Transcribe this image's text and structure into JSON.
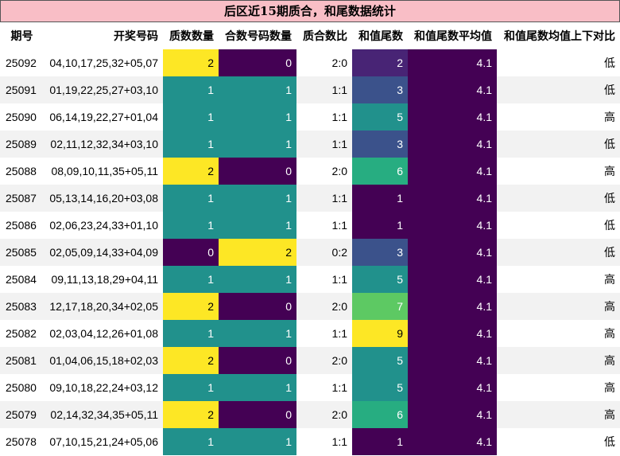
{
  "title": "后区近15期质合，和尾数据统计",
  "columns": [
    "期号",
    "开奖号码",
    "质数数量",
    "合数号码数量",
    "质合数比",
    "和值尾数",
    "和值尾数平均值",
    "和值尾数均值上下对比"
  ],
  "rows": [
    {
      "period": "25092",
      "numbers": "04,10,17,25,32+05,07",
      "prime": "2",
      "composite": "0",
      "ratio": "2:0",
      "tail": "2",
      "avg": "4.1",
      "cmp": "低"
    },
    {
      "period": "25091",
      "numbers": "01,19,22,25,27+03,10",
      "prime": "1",
      "composite": "1",
      "ratio": "1:1",
      "tail": "3",
      "avg": "4.1",
      "cmp": "低"
    },
    {
      "period": "25090",
      "numbers": "06,14,19,22,27+01,04",
      "prime": "1",
      "composite": "1",
      "ratio": "1:1",
      "tail": "5",
      "avg": "4.1",
      "cmp": "高"
    },
    {
      "period": "25089",
      "numbers": "02,11,12,32,34+03,10",
      "prime": "1",
      "composite": "1",
      "ratio": "1:1",
      "tail": "3",
      "avg": "4.1",
      "cmp": "低"
    },
    {
      "period": "25088",
      "numbers": "08,09,10,11,35+05,11",
      "prime": "2",
      "composite": "0",
      "ratio": "2:0",
      "tail": "6",
      "avg": "4.1",
      "cmp": "高"
    },
    {
      "period": "25087",
      "numbers": "05,13,14,16,20+03,08",
      "prime": "1",
      "composite": "1",
      "ratio": "1:1",
      "tail": "1",
      "avg": "4.1",
      "cmp": "低"
    },
    {
      "period": "25086",
      "numbers": "02,06,23,24,33+01,10",
      "prime": "1",
      "composite": "1",
      "ratio": "1:1",
      "tail": "1",
      "avg": "4.1",
      "cmp": "低"
    },
    {
      "period": "25085",
      "numbers": "02,05,09,14,33+04,09",
      "prime": "0",
      "composite": "2",
      "ratio": "0:2",
      "tail": "3",
      "avg": "4.1",
      "cmp": "低"
    },
    {
      "period": "25084",
      "numbers": "09,11,13,18,29+04,11",
      "prime": "1",
      "composite": "1",
      "ratio": "1:1",
      "tail": "5",
      "avg": "4.1",
      "cmp": "高"
    },
    {
      "period": "25083",
      "numbers": "12,17,18,20,34+02,05",
      "prime": "2",
      "composite": "0",
      "ratio": "2:0",
      "tail": "7",
      "avg": "4.1",
      "cmp": "高"
    },
    {
      "period": "25082",
      "numbers": "02,03,04,12,26+01,08",
      "prime": "1",
      "composite": "1",
      "ratio": "1:1",
      "tail": "9",
      "avg": "4.1",
      "cmp": "高"
    },
    {
      "period": "25081",
      "numbers": "01,04,06,15,18+02,03",
      "prime": "2",
      "composite": "0",
      "ratio": "2:0",
      "tail": "5",
      "avg": "4.1",
      "cmp": "高"
    },
    {
      "period": "25080",
      "numbers": "09,10,18,22,24+03,12",
      "prime": "1",
      "composite": "1",
      "ratio": "1:1",
      "tail": "5",
      "avg": "4.1",
      "cmp": "高"
    },
    {
      "period": "25079",
      "numbers": "02,14,32,34,35+05,11",
      "prime": "2",
      "composite": "0",
      "ratio": "2:0",
      "tail": "6",
      "avg": "4.1",
      "cmp": "高"
    },
    {
      "period": "25078",
      "numbers": "07,10,15,21,24+05,06",
      "prime": "1",
      "composite": "1",
      "ratio": "1:1",
      "tail": "1",
      "avg": "4.1",
      "cmp": "低"
    }
  ],
  "colors": {
    "title_bg": "#f9bec6",
    "count_0": "#440154",
    "count_1": "#21918c",
    "count_2": "#fde725",
    "tail_1": "#440154",
    "tail_2": "#482475",
    "tail_3": "#3b528b",
    "tail_5": "#21918c",
    "tail_6": "#27ad81",
    "tail_7": "#5dc963",
    "tail_9": "#fde725",
    "avg_bg": "#440154"
  }
}
